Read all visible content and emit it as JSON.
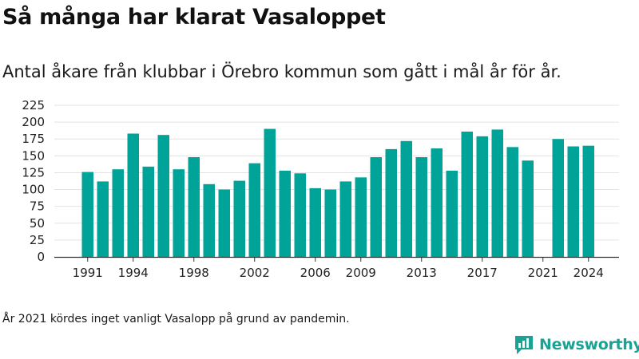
{
  "header": {
    "title": "Så många har klarat Vasaloppet",
    "subtitle": "Antal åkare från klubbar i Örebro kommun som gått i mål år för år."
  },
  "footnote": "År 2021 kördes inget vanligt Vasalopp på grund av pandemin.",
  "brand": {
    "name": "Newsworthy",
    "icon": "newsworthy-logo-icon"
  },
  "colors": {
    "bar": "#00a398",
    "axis": "#333333",
    "grid": "#e3e3e3",
    "brand": "#1aa395"
  },
  "chart_data": {
    "type": "bar",
    "x": [
      1991,
      1992,
      1993,
      1994,
      1995,
      1996,
      1997,
      1998,
      1999,
      2000,
      2001,
      2002,
      2003,
      2004,
      2005,
      2006,
      2007,
      2008,
      2009,
      2010,
      2011,
      2012,
      2013,
      2014,
      2015,
      2016,
      2017,
      2018,
      2019,
      2020,
      2021,
      2022,
      2023,
      2024
    ],
    "values": [
      126,
      112,
      130,
      183,
      134,
      181,
      130,
      148,
      108,
      100,
      113,
      139,
      190,
      128,
      124,
      102,
      100,
      112,
      118,
      148,
      160,
      172,
      148,
      161,
      128,
      186,
      179,
      189,
      163,
      143,
      null,
      175,
      164,
      165
    ],
    "x_ticks": [
      1991,
      1994,
      1998,
      2002,
      2006,
      2009,
      2013,
      2017,
      2021,
      2024
    ],
    "y_ticks": [
      0,
      25,
      50,
      75,
      100,
      125,
      150,
      175,
      200,
      225
    ],
    "ylim": [
      0,
      225
    ],
    "grid": true,
    "legend": "none"
  }
}
